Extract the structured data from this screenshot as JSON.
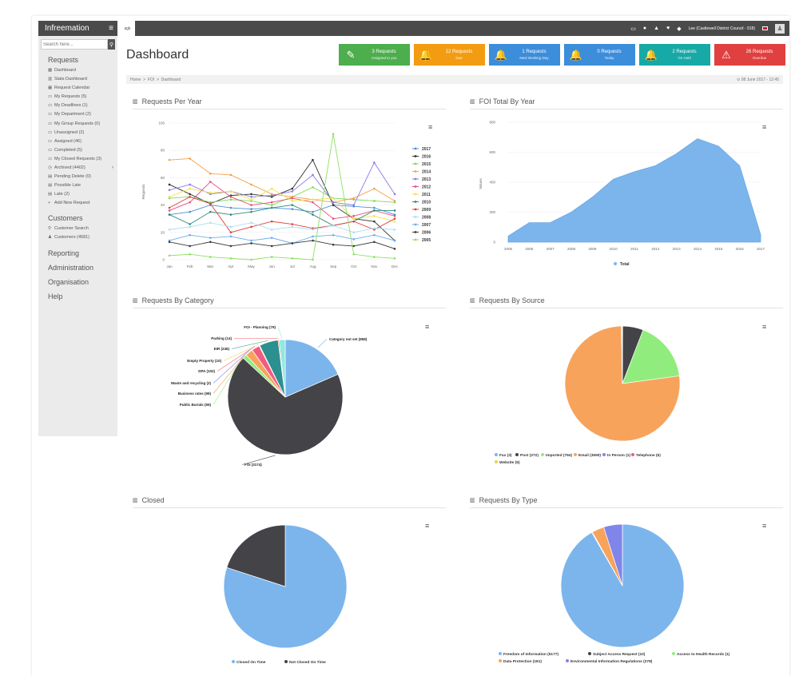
{
  "app": {
    "brand": "Infreemation"
  },
  "search": {
    "placeholder": "Search here..."
  },
  "sidebar": {
    "requests_heading": "Requests",
    "items": [
      {
        "icon": "dashboard-icon",
        "glyph": "▩",
        "label": "Dashboard"
      },
      {
        "icon": "chart-icon",
        "glyph": "▥",
        "label": "Stats Dashboard"
      },
      {
        "icon": "calendar-icon",
        "glyph": "▦",
        "label": "Request Calendar"
      },
      {
        "icon": "folder-icon",
        "glyph": "▭",
        "label": "My Requests (5)"
      },
      {
        "icon": "folder-icon",
        "glyph": "▭",
        "label": "My Deadlines (1)"
      },
      {
        "icon": "folder-icon",
        "glyph": "▭",
        "label": "My Department (2)"
      },
      {
        "icon": "folder-icon",
        "glyph": "▭",
        "label": "My Group Requests (0)"
      },
      {
        "icon": "folder-icon",
        "glyph": "▭",
        "label": "Unassigned (2)"
      },
      {
        "icon": "folder-icon",
        "glyph": "▭",
        "label": "Assigned (46)"
      },
      {
        "icon": "folder-icon",
        "glyph": "▭",
        "label": "Completed (5)"
      },
      {
        "icon": "folder-icon",
        "glyph": "▭",
        "label": "My Closed Requests (3)"
      },
      {
        "icon": "archive-icon",
        "glyph": "◷",
        "label": "Archived (4402)",
        "chevron": "›"
      },
      {
        "icon": "delete-icon",
        "glyph": "▤",
        "label": "Pending Delete (0)"
      },
      {
        "icon": "file-icon",
        "glyph": "▤",
        "label": "Possible Late"
      },
      {
        "icon": "file-icon",
        "glyph": "▤",
        "label": "Late (2)"
      },
      {
        "icon": "plus-icon",
        "glyph": "+",
        "label": "Add New Request"
      }
    ],
    "customers_heading": "Customers",
    "customer_items": [
      {
        "icon": "search-icon",
        "glyph": "⚲",
        "label": "Customer Search"
      },
      {
        "icon": "user-icon",
        "glyph": "♟",
        "label": "Customers (4581)"
      }
    ],
    "reporting": "Reporting",
    "administration": "Administration",
    "organisation": "Organisation",
    "help": "Help"
  },
  "topbar": {
    "tab_label": "agk",
    "user_label": "Lee (Castlewell District Council - 918)"
  },
  "page": {
    "title": "Dashboard",
    "breadcrumb": [
      "Home",
      "FOI",
      "Dashboard"
    ],
    "datetime": "⊙ 08 June 2017 - 12:45"
  },
  "tiles": [
    {
      "icon": "pencil-icon",
      "glyph": "✎",
      "line1": "3 Requests",
      "line2": "Assigned to you",
      "color": "#4cae4c"
    },
    {
      "icon": "bell-icon",
      "glyph": "🔔",
      "line1": "12 Requests",
      "line2": "Due",
      "color": "#f39c12"
    },
    {
      "icon": "bell-icon",
      "glyph": "🔔",
      "line1": "1 Requests",
      "line2": "Next Working Day",
      "color": "#3c8dda"
    },
    {
      "icon": "bell-icon",
      "glyph": "🔔",
      "line1": "0 Requests",
      "line2": "Today",
      "color": "#3c8dda"
    },
    {
      "icon": "bell-icon",
      "glyph": "🔔",
      "line1": "2 Requests",
      "line2": "On Hold",
      "color": "#16a9a6"
    },
    {
      "icon": "warning-icon",
      "glyph": "⚠",
      "line1": "26 Requests",
      "line2": "Overdue",
      "color": "#e04040"
    }
  ],
  "panels": {
    "requests_per_year": "Requests Per Year",
    "foi_total_by_year": "FOI Total By Year",
    "requests_by_category": "Requests By Category",
    "requests_by_source": "Requests By Source",
    "closed": "Closed",
    "requests_by_type": "Requests By Type"
  },
  "chart_data": [
    {
      "id": "requests_per_year",
      "type": "line",
      "title": "Requests Per Year",
      "ylabel": "Requests",
      "ylim": [
        0,
        100
      ],
      "yticks": [
        "0",
        "20",
        "40",
        "60",
        "80",
        "100"
      ],
      "categories": [
        "Jan",
        "Feb",
        "Mar",
        "Apr",
        "May",
        "Jun",
        "Jul",
        "Aug",
        "Sep",
        "Oct",
        "Nov",
        "Dec"
      ],
      "legend_position": "right",
      "series": [
        {
          "name": "2017",
          "color": "#4a90d9",
          "values": [
            33,
            35,
            40,
            38,
            37,
            38,
            37,
            35,
            40,
            39,
            38,
            33
          ]
        },
        {
          "name": "2016",
          "color": "#333333",
          "values": [
            55,
            48,
            41,
            47,
            48,
            46,
            52,
            73,
            40,
            30,
            28,
            14
          ]
        },
        {
          "name": "2015",
          "color": "#7ed957",
          "values": [
            45,
            46,
            42,
            44,
            43,
            40,
            46,
            53,
            45,
            44,
            43,
            42
          ]
        },
        {
          "name": "2014",
          "color": "#f5a04a",
          "values": [
            73,
            74,
            63,
            62,
            55,
            48,
            46,
            44,
            42,
            45,
            52,
            43
          ]
        },
        {
          "name": "2013",
          "color": "#8c7ae6",
          "values": [
            51,
            55,
            48,
            50,
            46,
            47,
            50,
            62,
            42,
            40,
            71,
            48
          ]
        },
        {
          "name": "2012",
          "color": "#e84c7d",
          "values": [
            36,
            42,
            57,
            46,
            40,
            42,
            45,
            42,
            30,
            32,
            36,
            32
          ]
        },
        {
          "name": "2011",
          "color": "#f5e14a",
          "values": [
            46,
            52,
            49,
            50,
            44,
            52,
            43,
            44,
            45,
            30,
            32,
            28
          ]
        },
        {
          "name": "2010",
          "color": "#2e8b7a",
          "values": [
            33,
            26,
            35,
            33,
            35,
            38,
            40,
            33,
            25,
            28,
            36,
            36
          ]
        },
        {
          "name": "2009",
          "color": "#e04040",
          "values": [
            38,
            46,
            41,
            20,
            24,
            28,
            26,
            23,
            25,
            28,
            22,
            30
          ]
        },
        {
          "name": "2008",
          "color": "#a8e0f0",
          "values": [
            22,
            24,
            27,
            24,
            27,
            22,
            24,
            22,
            25,
            20,
            23,
            22
          ]
        },
        {
          "name": "2007",
          "color": "#6aaee8",
          "values": [
            14,
            18,
            16,
            17,
            14,
            16,
            12,
            17,
            18,
            15,
            18,
            14
          ]
        },
        {
          "name": "2006",
          "color": "#3a3a3a",
          "values": [
            13,
            10,
            13,
            10,
            12,
            10,
            12,
            14,
            11,
            10,
            13,
            8
          ]
        },
        {
          "name": "2005",
          "color": "#8ee062",
          "values": [
            3,
            4,
            2,
            1,
            0,
            2,
            1,
            0,
            92,
            4,
            2,
            1
          ]
        }
      ]
    },
    {
      "id": "foi_total_by_year",
      "type": "area",
      "title": "FOI Total By Year",
      "ylabel": "Values",
      "ylim": [
        0,
        800
      ],
      "yticks": [
        "0",
        "200",
        "400",
        "600",
        "800"
      ],
      "categories": [
        "2005",
        "2006",
        "2007",
        "2008",
        "2009",
        "2010",
        "2011",
        "2012",
        "2013",
        "2014",
        "2015",
        "2016",
        "2017"
      ],
      "series": [
        {
          "name": "Total",
          "color": "#7cb5ec",
          "values": [
            40,
            130,
            130,
            200,
            300,
            420,
            470,
            510,
            590,
            690,
            640,
            510,
            50
          ]
        }
      ],
      "legend_position": "bottom"
    },
    {
      "id": "requests_by_category",
      "type": "pie",
      "title": "Requests By Category",
      "slices": [
        {
          "label": "Category not set (858)",
          "value": 858,
          "color": "#7cb5ec"
        },
        {
          "label": "FOI (3174)",
          "value": 3174,
          "color": "#434348"
        },
        {
          "label": "Public Burials (55)",
          "value": 55,
          "color": "#90ed7d"
        },
        {
          "label": "Business rates (99)",
          "value": 99,
          "color": "#f7a35c"
        },
        {
          "label": "Waste and recycling (2)",
          "value": 2,
          "color": "#8085e9"
        },
        {
          "label": "DPA (102)",
          "value": 102,
          "color": "#f15c80"
        },
        {
          "label": "Empty Property (10)",
          "value": 10,
          "color": "#e4d354"
        },
        {
          "label": "EIR (246)",
          "value": 246,
          "color": "#2b908f"
        },
        {
          "label": "Parking (14)",
          "value": 14,
          "color": "#f45b5b"
        },
        {
          "label": "FOI - Planning (79)",
          "value": 79,
          "color": "#91e8e1"
        }
      ],
      "legend_position": "none"
    },
    {
      "id": "requests_by_source",
      "type": "pie",
      "title": "Requests By Source",
      "slices": [
        {
          "label": "Fax (3)",
          "value": 3,
          "color": "#7cb5ec"
        },
        {
          "label": "Post (272)",
          "value": 272,
          "color": "#434348"
        },
        {
          "label": "Imported (794)",
          "value": 794,
          "color": "#90ed7d"
        },
        {
          "label": "Email (3590)",
          "value": 3590,
          "color": "#f7a35c"
        },
        {
          "label": "In Person (1)",
          "value": 1,
          "color": "#8085e9"
        },
        {
          "label": "Telephone (6)",
          "value": 6,
          "color": "#f15c80"
        },
        {
          "label": "Website (5)",
          "value": 5,
          "color": "#e4d354"
        }
      ],
      "legend_position": "bottom"
    },
    {
      "id": "closed",
      "type": "pie",
      "title": "Closed",
      "slices": [
        {
          "label": "Closed On Time",
          "value": 80,
          "color": "#7cb5ec"
        },
        {
          "label": "Not Closed On Time",
          "value": 20,
          "color": "#434348"
        }
      ],
      "legend_position": "bottom"
    },
    {
      "id": "requests_by_type",
      "type": "pie",
      "title": "Requests By Type",
      "slices": [
        {
          "label": "Freedom of Information (5177)",
          "value": 5177,
          "color": "#7cb5ec"
        },
        {
          "label": "Subject Access Request (10)",
          "value": 10,
          "color": "#434348"
        },
        {
          "label": "Access to Health Records (1)",
          "value": 1,
          "color": "#90ed7d"
        },
        {
          "label": "Data Protection (181)",
          "value": 181,
          "color": "#f7a35c"
        },
        {
          "label": "Environmental Information Regulations (278)",
          "value": 278,
          "color": "#8085e9"
        }
      ],
      "legend_position": "bottom"
    }
  ]
}
